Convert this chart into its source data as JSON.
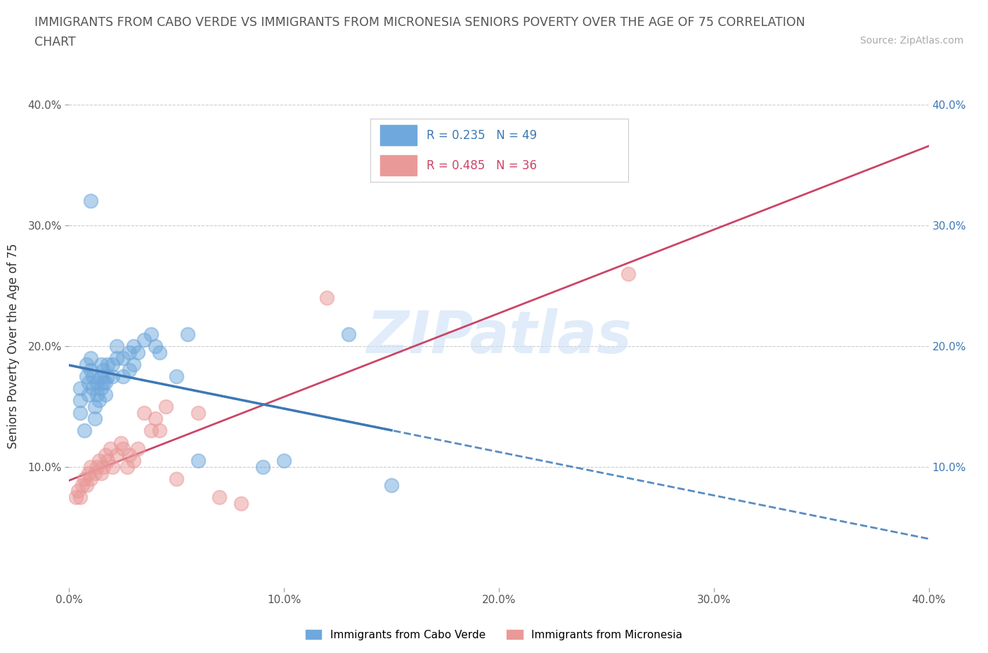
{
  "title_line1": "IMMIGRANTS FROM CABO VERDE VS IMMIGRANTS FROM MICRONESIA SENIORS POVERTY OVER THE AGE OF 75 CORRELATION",
  "title_line2": "CHART",
  "source_text": "Source: ZipAtlas.com",
  "ylabel": "Seniors Poverty Over the Age of 75",
  "xlim": [
    0.0,
    0.4
  ],
  "ylim": [
    0.0,
    0.4
  ],
  "xtick_labels": [
    "0.0%",
    "10.0%",
    "20.0%",
    "30.0%",
    "40.0%"
  ],
  "xtick_values": [
    0.0,
    0.1,
    0.2,
    0.3,
    0.4
  ],
  "ytick_labels": [
    "10.0%",
    "20.0%",
    "30.0%",
    "40.0%"
  ],
  "ytick_values": [
    0.1,
    0.2,
    0.3,
    0.4
  ],
  "cabo_verde_color": "#6fa8dc",
  "micronesia_color": "#ea9999",
  "cabo_verde_line_color": "#3d78b5",
  "micronesia_line_color": "#cc4466",
  "cabo_verde_R": 0.235,
  "cabo_verde_N": 49,
  "micronesia_R": 0.485,
  "micronesia_N": 36,
  "legend_label_1": "Immigrants from Cabo Verde",
  "legend_label_2": "Immigrants from Micronesia",
  "watermark": "ZIPatlas",
  "cabo_verde_x": [
    0.005,
    0.005,
    0.005,
    0.007,
    0.008,
    0.008,
    0.009,
    0.009,
    0.01,
    0.01,
    0.01,
    0.011,
    0.011,
    0.012,
    0.012,
    0.013,
    0.013,
    0.014,
    0.015,
    0.015,
    0.015,
    0.016,
    0.016,
    0.017,
    0.017,
    0.018,
    0.018,
    0.02,
    0.02,
    0.022,
    0.022,
    0.025,
    0.025,
    0.028,
    0.028,
    0.03,
    0.03,
    0.032,
    0.035,
    0.038,
    0.04,
    0.042,
    0.05,
    0.055,
    0.06,
    0.09,
    0.1,
    0.13,
    0.15
  ],
  "cabo_verde_y": [
    0.145,
    0.155,
    0.165,
    0.13,
    0.175,
    0.185,
    0.16,
    0.17,
    0.18,
    0.19,
    0.32,
    0.165,
    0.175,
    0.14,
    0.15,
    0.16,
    0.17,
    0.155,
    0.165,
    0.175,
    0.185,
    0.17,
    0.18,
    0.16,
    0.17,
    0.175,
    0.185,
    0.175,
    0.185,
    0.19,
    0.2,
    0.175,
    0.19,
    0.18,
    0.195,
    0.185,
    0.2,
    0.195,
    0.205,
    0.21,
    0.2,
    0.195,
    0.175,
    0.21,
    0.105,
    0.1,
    0.105,
    0.21,
    0.085
  ],
  "micronesia_x": [
    0.003,
    0.004,
    0.005,
    0.006,
    0.007,
    0.008,
    0.009,
    0.01,
    0.01,
    0.012,
    0.013,
    0.014,
    0.015,
    0.016,
    0.017,
    0.018,
    0.019,
    0.02,
    0.022,
    0.024,
    0.025,
    0.027,
    0.028,
    0.03,
    0.032,
    0.035,
    0.038,
    0.04,
    0.042,
    0.045,
    0.05,
    0.06,
    0.07,
    0.08,
    0.12,
    0.26
  ],
  "micronesia_y": [
    0.075,
    0.08,
    0.075,
    0.085,
    0.09,
    0.085,
    0.095,
    0.09,
    0.1,
    0.095,
    0.1,
    0.105,
    0.095,
    0.1,
    0.11,
    0.105,
    0.115,
    0.1,
    0.11,
    0.12,
    0.115,
    0.1,
    0.11,
    0.105,
    0.115,
    0.145,
    0.13,
    0.14,
    0.13,
    0.15,
    0.09,
    0.145,
    0.075,
    0.07,
    0.24,
    0.26
  ]
}
